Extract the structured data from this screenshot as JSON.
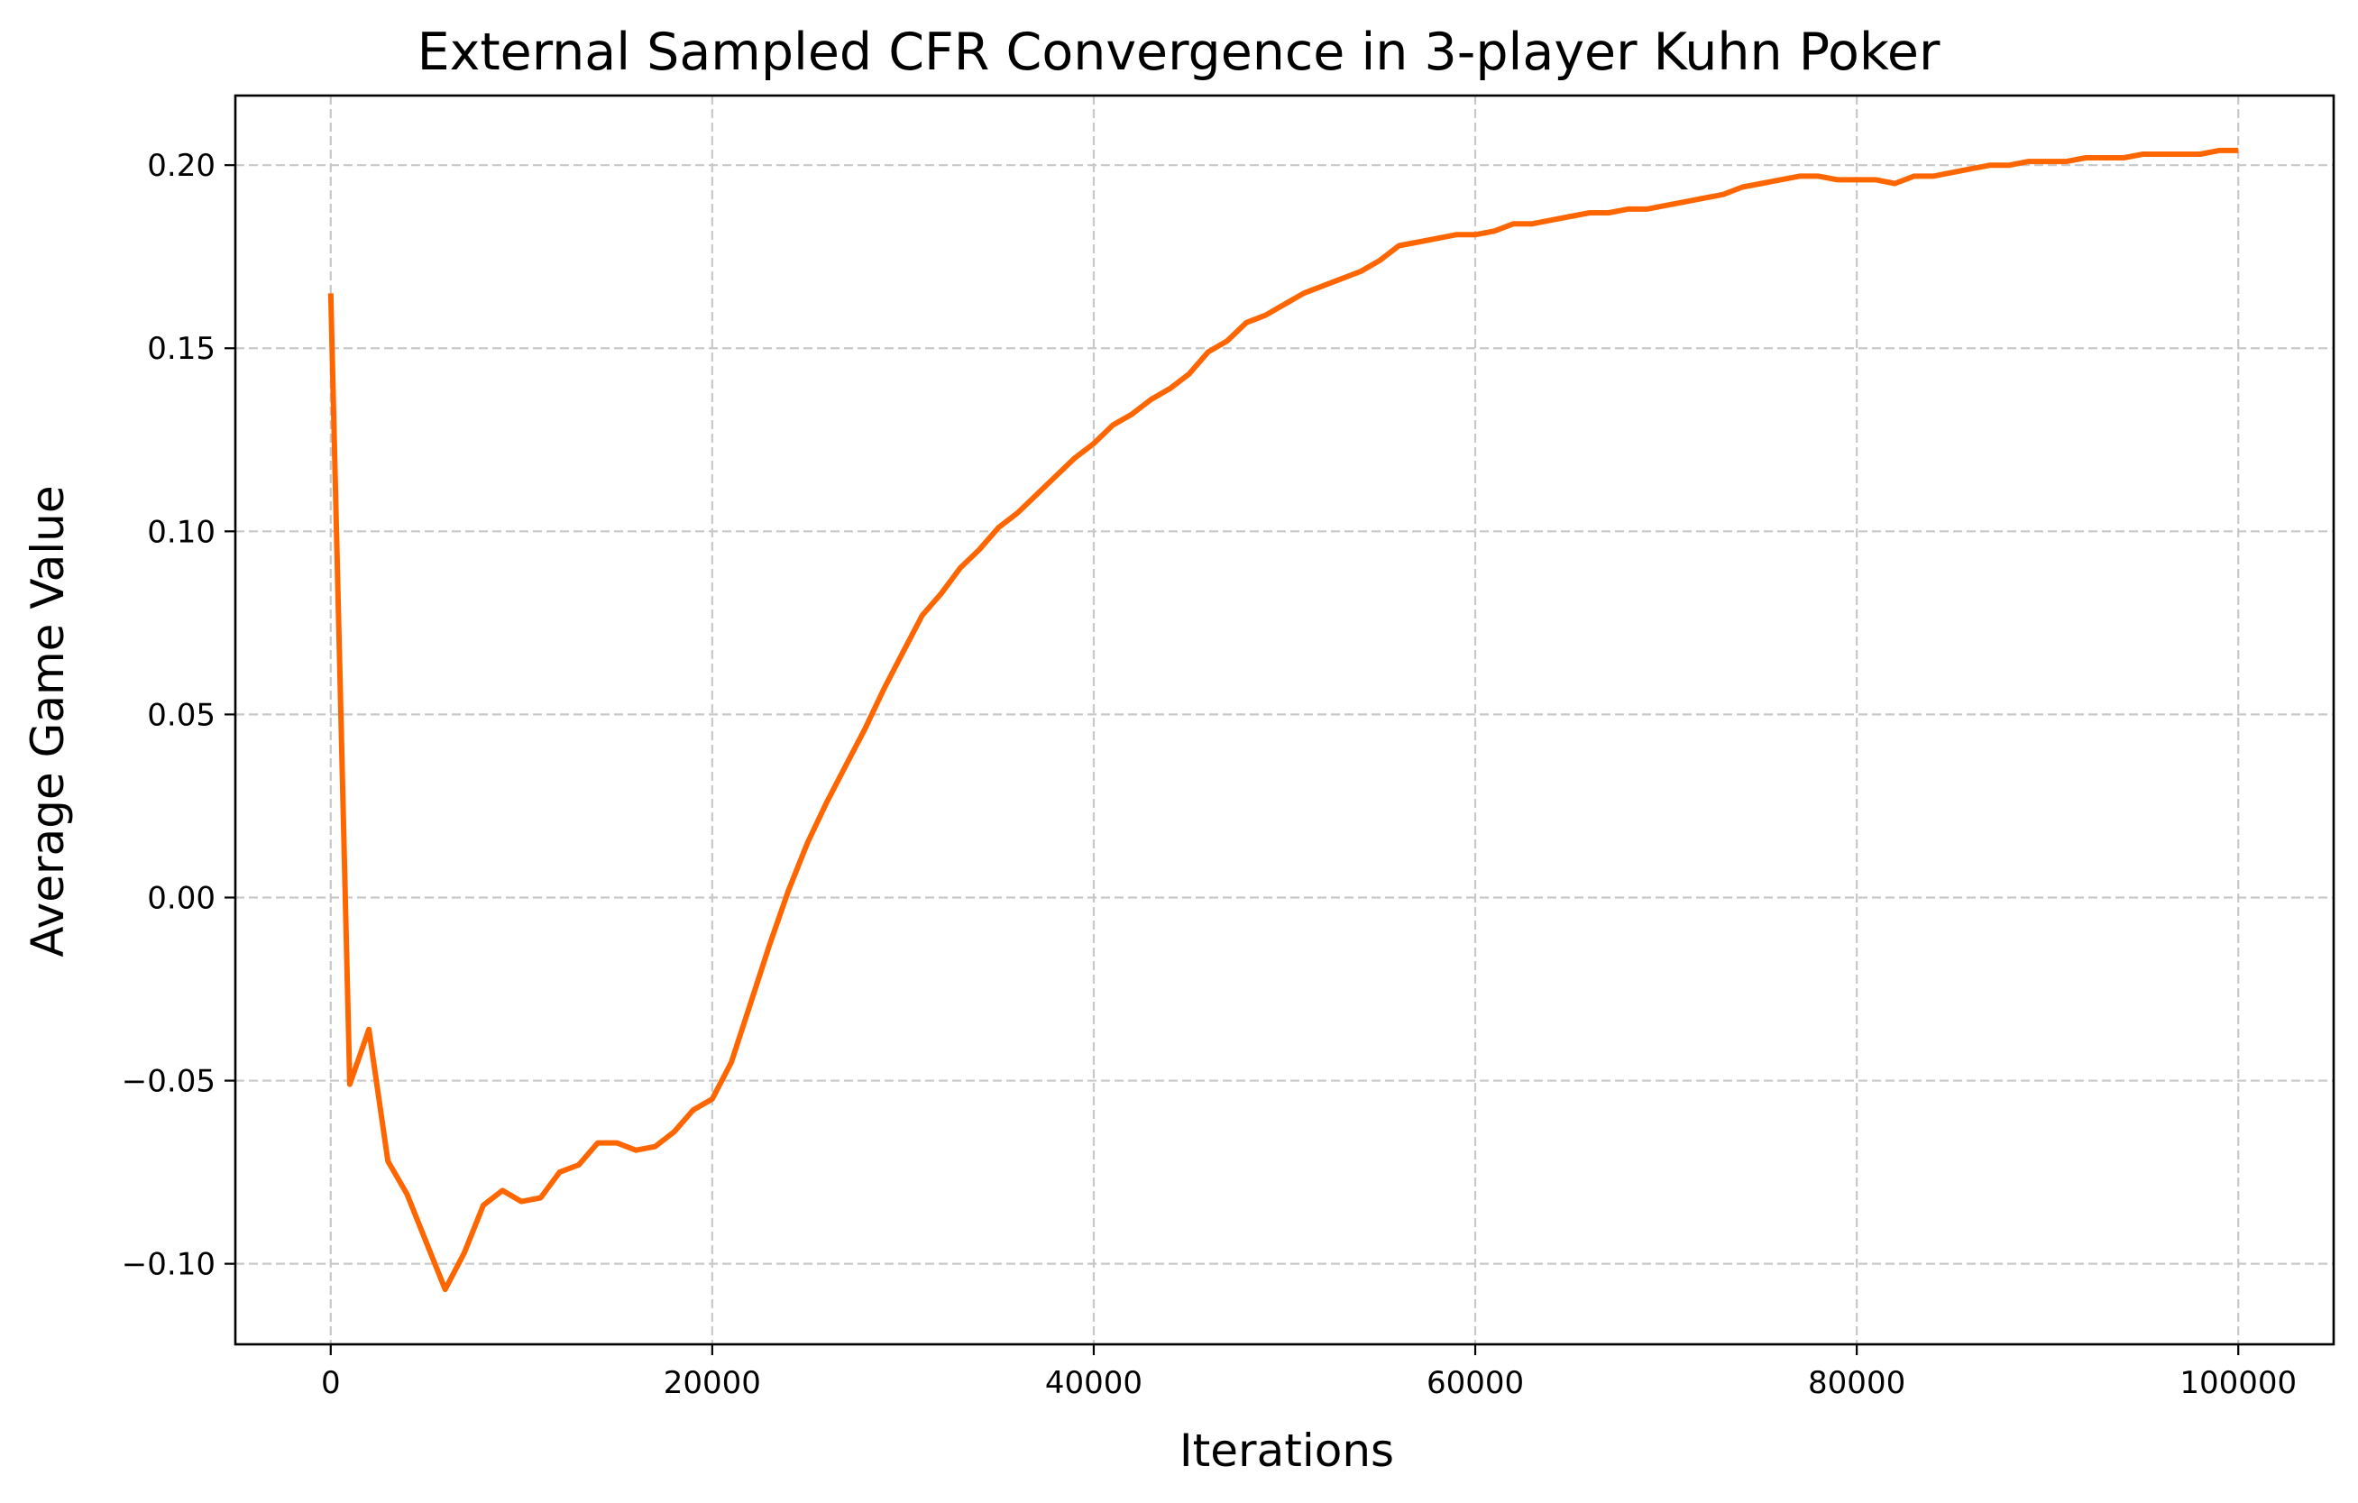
{
  "chart_data": {
    "type": "line",
    "title": "External Sampled CFR Convergence in 3-player Kuhn Poker",
    "xlabel": "Iterations",
    "ylabel": "Average Game Value",
    "xlim": [
      -5000,
      105000
    ],
    "ylim": [
      -0.122,
      0.219
    ],
    "grid": true,
    "line_color": "#ff6600",
    "x_ticks": [
      {
        "value": 0,
        "label": "0"
      },
      {
        "value": 20000,
        "label": "20000"
      },
      {
        "value": 40000,
        "label": "40000"
      },
      {
        "value": 60000,
        "label": "60000"
      },
      {
        "value": 80000,
        "label": "80000"
      },
      {
        "value": 100000,
        "label": "100000"
      }
    ],
    "y_ticks": [
      {
        "value": -0.1,
        "label": "−0.10"
      },
      {
        "value": -0.05,
        "label": "−0.05"
      },
      {
        "value": 0.0,
        "label": "0.00"
      },
      {
        "value": 0.05,
        "label": "0.05"
      },
      {
        "value": 0.1,
        "label": "0.10"
      },
      {
        "value": 0.15,
        "label": "0.15"
      },
      {
        "value": 0.2,
        "label": "0.20"
      }
    ],
    "series": [
      {
        "x": [
          0,
          1000,
          2000,
          3000,
          4000,
          5000,
          6000,
          7000,
          8000,
          9000,
          10000,
          11000,
          12000,
          13000,
          14000,
          15000,
          16000,
          17000,
          18000,
          19000,
          20000,
          21000,
          22000,
          23000,
          24000,
          25000,
          26000,
          27000,
          28000,
          29000,
          30000,
          31000,
          32000,
          33000,
          34000,
          35000,
          36000,
          37000,
          38000,
          39000,
          40000,
          41000,
          42000,
          43000,
          44000,
          45000,
          46000,
          47000,
          48000,
          49000,
          50000,
          51000,
          52000,
          53000,
          54000,
          55000,
          56000,
          57000,
          58000,
          59000,
          60000,
          61000,
          62000,
          63000,
          64000,
          65000,
          66000,
          67000,
          68000,
          69000,
          70000,
          71000,
          72000,
          73000,
          74000,
          75000,
          76000,
          77000,
          78000,
          79000,
          80000,
          81000,
          82000,
          83000,
          84000,
          85000,
          86000,
          87000,
          88000,
          89000,
          90000,
          91000,
          92000,
          93000,
          94000,
          95000,
          96000,
          97000,
          98000,
          99000,
          100000
        ],
        "y": [
          0.165,
          -0.051,
          -0.036,
          -0.072,
          -0.081,
          -0.094,
          -0.107,
          -0.097,
          -0.084,
          -0.08,
          -0.083,
          -0.082,
          -0.075,
          -0.073,
          -0.067,
          -0.067,
          -0.069,
          -0.068,
          -0.064,
          -0.058,
          -0.055,
          -0.045,
          -0.029,
          -0.013,
          0.002,
          0.015,
          0.026,
          0.036,
          0.046,
          0.057,
          0.067,
          0.077,
          0.083,
          0.09,
          0.095,
          0.101,
          0.105,
          0.11,
          0.115,
          0.12,
          0.124,
          0.129,
          0.132,
          0.136,
          0.139,
          0.143,
          0.149,
          0.152,
          0.157,
          0.159,
          0.162,
          0.165,
          0.167,
          0.169,
          0.171,
          0.174,
          0.178,
          0.179,
          0.18,
          0.181,
          0.181,
          0.182,
          0.184,
          0.184,
          0.185,
          0.186,
          0.187,
          0.187,
          0.188,
          0.188,
          0.189,
          0.19,
          0.191,
          0.192,
          0.194,
          0.195,
          0.196,
          0.197,
          0.197,
          0.196,
          0.196,
          0.196,
          0.195,
          0.197,
          0.197,
          0.198,
          0.199,
          0.2,
          0.2,
          0.201,
          0.201,
          0.201,
          0.202,
          0.202,
          0.202,
          0.203,
          0.203,
          0.203,
          0.203,
          0.204,
          0.204
        ]
      }
    ]
  }
}
